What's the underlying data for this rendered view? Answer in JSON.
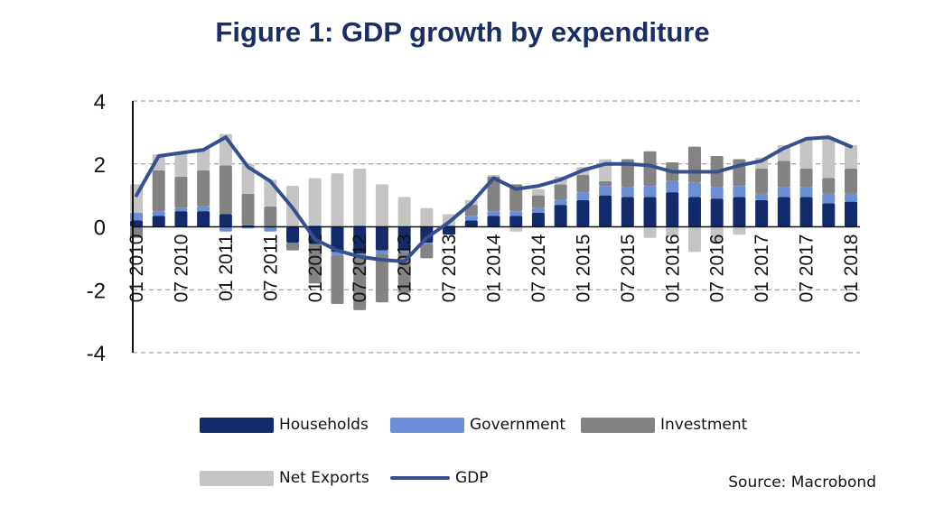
{
  "chart_data": {
    "type": "bar",
    "stacked": true,
    "title": "Figure 1: GDP growth by expenditure",
    "xlabel": "",
    "ylabel": "",
    "ylim": [
      -4,
      4
    ],
    "yticks": [
      4,
      2,
      0,
      -2,
      -4
    ],
    "grid": true,
    "legend_position": "bottom",
    "source": "Source: Macrobond",
    "categories": [
      "2010Q1",
      "2010Q2",
      "2010Q3",
      "2010Q4",
      "2011Q1",
      "2011Q2",
      "2011Q3",
      "2011Q4",
      "2012Q1",
      "2012Q2",
      "2012Q3",
      "2012Q4",
      "2013Q1",
      "2013Q2",
      "2013Q3",
      "2013Q4",
      "2014Q1",
      "2014Q2",
      "2014Q3",
      "2014Q4",
      "2015Q1",
      "2015Q2",
      "2015Q3",
      "2015Q4",
      "2016Q1",
      "2016Q2",
      "2016Q3",
      "2016Q4",
      "2017Q1",
      "2017Q2",
      "2017Q3",
      "2017Q4",
      "2018Q1"
    ],
    "xtick_labels": [
      {
        "index": 0,
        "label": "01 2010"
      },
      {
        "index": 2,
        "label": "07 2010"
      },
      {
        "index": 4,
        "label": "01 2011"
      },
      {
        "index": 6,
        "label": "07 2011"
      },
      {
        "index": 8,
        "label": "01 2012"
      },
      {
        "index": 10,
        "label": "07 2012"
      },
      {
        "index": 12,
        "label": "01 2013"
      },
      {
        "index": 14,
        "label": "07 2013"
      },
      {
        "index": 16,
        "label": "01 2014"
      },
      {
        "index": 18,
        "label": "07 2014"
      },
      {
        "index": 20,
        "label": "01 2015"
      },
      {
        "index": 22,
        "label": "07 2015"
      },
      {
        "index": 24,
        "label": "01 2016"
      },
      {
        "index": 26,
        "label": "07 2016"
      },
      {
        "index": 28,
        "label": "01 2017"
      },
      {
        "index": 30,
        "label": "07 2017"
      },
      {
        "index": 32,
        "label": "01 2018"
      }
    ],
    "series": [
      {
        "name": "Households",
        "type": "bar",
        "color": "#132a6b",
        "values": [
          0.2,
          0.35,
          0.5,
          0.5,
          0.4,
          0.05,
          0.0,
          -0.5,
          -0.55,
          -0.8,
          -0.85,
          -0.75,
          -0.75,
          -0.5,
          -0.25,
          0.2,
          0.35,
          0.35,
          0.45,
          0.7,
          0.85,
          1.0,
          0.95,
          0.95,
          1.1,
          0.95,
          0.9,
          0.95,
          0.85,
          0.95,
          0.95,
          0.75,
          0.8
        ]
      },
      {
        "name": "Government",
        "type": "bar",
        "color": "#6b8fd6",
        "values": [
          0.25,
          0.15,
          0.1,
          0.15,
          -0.15,
          -0.05,
          -0.15,
          0.0,
          0.05,
          -0.1,
          0.05,
          -0.1,
          -0.05,
          -0.05,
          0.05,
          0.15,
          0.15,
          0.15,
          0.15,
          0.15,
          0.25,
          0.3,
          0.3,
          0.35,
          0.35,
          0.45,
          0.35,
          0.35,
          0.2,
          0.3,
          0.3,
          0.3,
          0.25
        ]
      },
      {
        "name": "Investment",
        "type": "bar",
        "color": "#838383",
        "values": [
          -0.35,
          1.3,
          1.0,
          1.15,
          1.55,
          1.0,
          0.65,
          -0.25,
          -1.25,
          -1.55,
          -1.8,
          -1.55,
          -1.3,
          -0.45,
          0.0,
          0.35,
          1.1,
          0.85,
          0.4,
          0.5,
          0.55,
          0.15,
          0.9,
          1.1,
          0.6,
          1.15,
          1.0,
          0.85,
          0.8,
          0.85,
          0.6,
          0.5,
          0.8
        ]
      },
      {
        "name": "Net Exports",
        "type": "bar",
        "color": "#c4c4c4",
        "values": [
          0.9,
          0.5,
          0.75,
          0.7,
          1.0,
          0.95,
          0.85,
          1.3,
          1.5,
          1.7,
          1.8,
          1.35,
          0.95,
          0.6,
          0.35,
          0.15,
          0.05,
          -0.15,
          0.2,
          0.25,
          0.25,
          0.7,
          0.0,
          -0.35,
          -0.3,
          -0.8,
          -0.5,
          -0.25,
          0.35,
          0.5,
          0.95,
          1.3,
          0.75
        ]
      },
      {
        "name": "GDP",
        "type": "line",
        "color": "#34508e",
        "values": [
          1.0,
          2.25,
          2.35,
          2.45,
          2.85,
          1.9,
          1.45,
          0.6,
          -0.4,
          -0.75,
          -0.95,
          -1.05,
          -1.1,
          -0.35,
          0.15,
          0.75,
          1.55,
          1.2,
          1.3,
          1.5,
          1.8,
          2.0,
          2.0,
          1.95,
          1.75,
          1.75,
          1.75,
          1.95,
          2.1,
          2.5,
          2.8,
          2.85,
          2.55
        ]
      }
    ]
  },
  "legend": {
    "households": "Households",
    "government": "Government",
    "investment": "Investment",
    "net_exports": "Net Exports",
    "gdp": "GDP"
  },
  "title": "Figure 1: GDP growth by expenditure",
  "source": "Source: Macrobond"
}
